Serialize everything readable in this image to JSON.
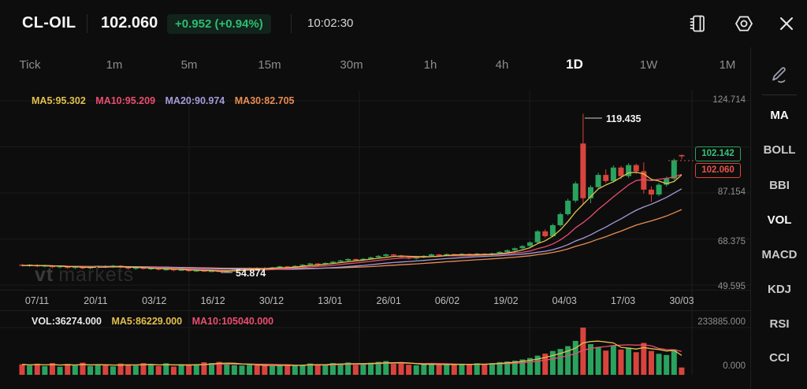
{
  "header": {
    "symbol": "CL-OIL",
    "price": "102.060",
    "change": "+0.952 (+0.94%)",
    "time": "10:02:30"
  },
  "header_icons": [
    "journal-icon",
    "settings-icon",
    "close-icon"
  ],
  "timeframes": {
    "items": [
      "Tick",
      "1m",
      "5m",
      "15m",
      "30m",
      "1h",
      "4h",
      "1D",
      "1W",
      "1M"
    ],
    "active": "1D"
  },
  "indicator_rail": {
    "items": [
      "MA",
      "BOLL",
      "BBI",
      "VOL",
      "MACD",
      "KDJ",
      "RSI",
      "CCI"
    ],
    "active": [
      "MA",
      "VOL"
    ]
  },
  "main_overlay": {
    "ma5": "MA5:95.302",
    "ma10": "MA10:95.209",
    "ma20": "MA20:90.974",
    "ma30": "MA30:82.705"
  },
  "volume_overlay": {
    "vol": "VOL:36274.000",
    "ma5": "MA5:86229.000",
    "ma10": "MA10:105040.000"
  },
  "y_axis": {
    "price": [
      "124.714",
      "87.154",
      "68.375",
      "49.595"
    ],
    "volume": [
      "233885.000",
      "0.000"
    ]
  },
  "x_axis": [
    "07/11",
    "20/11",
    "03/12",
    "16/12",
    "30/12",
    "13/01",
    "26/01",
    "06/02",
    "19/02",
    "04/03",
    "17/03",
    "30/03"
  ],
  "annotations": {
    "high": "119.435",
    "low": "54.874"
  },
  "price_tags": {
    "green": "102.142",
    "red": "102.060"
  },
  "watermark": {
    "bold": "vt",
    "rest": "markets"
  },
  "colors": {
    "background": "#0d0d0d",
    "up": "#2aa35f",
    "down": "#d8443d",
    "ma5": "#e3c04b",
    "ma10": "#ea4d6e",
    "ma20": "#a49bdc",
    "ma30": "#ea8c52",
    "pill_green": "#2dbd74",
    "grid": "#1b1b1b",
    "axis_text": "#8f8f8f"
  },
  "chart_data": {
    "type": "candlestick",
    "title": "CL-OIL 1D",
    "x_tick_labels": [
      "07/11",
      "20/11",
      "03/12",
      "16/12",
      "30/12",
      "13/01",
      "26/01",
      "06/02",
      "19/02",
      "04/03",
      "17/03",
      "30/03"
    ],
    "y_axis_ticks": [
      124.714,
      105.934,
      87.154,
      68.375,
      49.595
    ],
    "volume_axis_ticks": [
      233885.0,
      0.0
    ],
    "high_annotation": 119.435,
    "low_annotation": 54.874,
    "last_price": 102.06,
    "upper_tag_price": 102.142,
    "moving_averages_shown": {
      "MA5": 95.302,
      "MA10": 95.209,
      "MA20": 90.974,
      "MA30": 82.705
    },
    "volume_ma_shown": {
      "VOL": 36274.0,
      "MA5": 86229.0,
      "MA10": 105040.0
    },
    "candles_ohlcv": [
      [
        57.9,
        58.3,
        57.2,
        57.5,
        52000
      ],
      [
        57.5,
        58.1,
        57.0,
        57.8,
        46000
      ],
      [
        57.8,
        58.2,
        56.9,
        57.2,
        55000
      ],
      [
        57.2,
        57.9,
        56.8,
        57.6,
        43000
      ],
      [
        57.6,
        57.8,
        56.5,
        56.9,
        58000
      ],
      [
        56.9,
        57.6,
        56.4,
        57.3,
        40000
      ],
      [
        57.3,
        57.5,
        56.2,
        56.6,
        54000
      ],
      [
        56.6,
        57.4,
        56.1,
        57.1,
        46000
      ],
      [
        57.1,
        57.3,
        56.0,
        56.4,
        60000
      ],
      [
        56.4,
        57.2,
        56.0,
        56.9,
        44000
      ],
      [
        56.9,
        57.6,
        56.3,
        57.4,
        50000
      ],
      [
        57.4,
        57.7,
        56.5,
        56.8,
        47000
      ],
      [
        56.8,
        57.8,
        56.6,
        57.5,
        42000
      ],
      [
        57.5,
        57.7,
        56.4,
        56.8,
        56000
      ],
      [
        56.8,
        57.2,
        55.9,
        56.3,
        51000
      ],
      [
        56.3,
        57.0,
        55.8,
        56.7,
        45000
      ],
      [
        56.7,
        56.9,
        55.9,
        56.2,
        58000
      ],
      [
        56.2,
        56.8,
        55.7,
        56.5,
        49000
      ],
      [
        56.5,
        56.7,
        55.5,
        55.9,
        43000
      ],
      [
        55.9,
        56.4,
        55.4,
        56.1,
        57000
      ],
      [
        56.1,
        56.3,
        55.2,
        55.6,
        41000
      ],
      [
        55.6,
        56.2,
        55.3,
        55.9,
        53000
      ],
      [
        55.9,
        56.0,
        55.0,
        55.3,
        46000
      ],
      [
        55.3,
        55.8,
        54.95,
        55.6,
        52000
      ],
      [
        55.6,
        55.7,
        54.9,
        55.1,
        62000
      ],
      [
        55.1,
        55.6,
        54.88,
        55.4,
        58000
      ],
      [
        55.4,
        55.5,
        54.874,
        54.95,
        64000
      ],
      [
        54.95,
        55.7,
        54.9,
        55.5,
        55000
      ],
      [
        55.5,
        56.1,
        55.2,
        55.9,
        48000
      ],
      [
        55.9,
        56.5,
        55.6,
        56.3,
        46000
      ],
      [
        56.3,
        56.8,
        55.9,
        56.6,
        50000
      ],
      [
        56.6,
        56.9,
        56.0,
        56.4,
        47000
      ],
      [
        56.4,
        56.9,
        55.9,
        56.3,
        46000
      ],
      [
        56.3,
        57.0,
        56.0,
        56.8,
        43000
      ],
      [
        56.8,
        57.5,
        56.4,
        57.2,
        48000
      ],
      [
        57.2,
        57.4,
        56.3,
        56.8,
        52000
      ],
      [
        56.8,
        57.7,
        56.5,
        57.4,
        45000
      ],
      [
        57.4,
        58.2,
        57.1,
        57.9,
        50000
      ],
      [
        57.9,
        58.7,
        57.5,
        58.4,
        56000
      ],
      [
        58.4,
        58.6,
        57.6,
        58.0,
        47000
      ],
      [
        58.0,
        58.9,
        57.8,
        58.6,
        52000
      ],
      [
        58.6,
        59.4,
        58.2,
        59.1,
        58000
      ],
      [
        59.1,
        59.9,
        58.7,
        59.6,
        54000
      ],
      [
        59.6,
        60.5,
        59.2,
        60.2,
        61000
      ],
      [
        60.2,
        60.4,
        59.3,
        59.7,
        49000
      ],
      [
        59.7,
        60.6,
        59.4,
        60.3,
        55000
      ],
      [
        60.3,
        61.2,
        59.9,
        60.9,
        60000
      ],
      [
        60.9,
        61.8,
        60.5,
        61.5,
        64000
      ],
      [
        61.5,
        62.4,
        61.1,
        62.1,
        68000
      ],
      [
        62.1,
        62.3,
        61.2,
        61.6,
        54000
      ],
      [
        61.6,
        61.9,
        60.7,
        61.0,
        58000
      ],
      [
        61.0,
        61.3,
        60.1,
        60.4,
        50000
      ],
      [
        60.4,
        61.2,
        60.0,
        60.9,
        47000
      ],
      [
        60.9,
        61.8,
        60.5,
        61.5,
        52000
      ],
      [
        61.5,
        62.4,
        61.1,
        62.1,
        56000
      ],
      [
        62.1,
        62.3,
        61.2,
        61.6,
        48000
      ],
      [
        61.6,
        62.5,
        61.3,
        62.2,
        53000
      ],
      [
        62.2,
        62.4,
        61.3,
        61.7,
        49000
      ],
      [
        61.7,
        62.6,
        61.4,
        62.3,
        55000
      ],
      [
        62.3,
        62.5,
        61.4,
        61.8,
        51000
      ],
      [
        61.8,
        62.7,
        61.5,
        62.4,
        57000
      ],
      [
        62.4,
        62.6,
        61.5,
        61.9,
        52000
      ],
      [
        61.9,
        62.8,
        61.6,
        62.5,
        58000
      ],
      [
        62.5,
        63.4,
        62.1,
        63.1,
        63000
      ],
      [
        63.1,
        64.1,
        62.8,
        63.8,
        66000
      ],
      [
        63.8,
        64.9,
        63.4,
        64.6,
        70000
      ],
      [
        64.6,
        65.9,
        64.2,
        65.5,
        76000
      ],
      [
        65.5,
        67.4,
        65.1,
        67.0,
        83000
      ],
      [
        67.0,
        72.0,
        66.6,
        71.5,
        95000
      ],
      [
        71.5,
        72.3,
        68.9,
        69.5,
        105000
      ],
      [
        69.5,
        74.6,
        69.1,
        74.0,
        118000
      ],
      [
        74.0,
        79.2,
        73.4,
        78.5,
        128000
      ],
      [
        78.5,
        84.8,
        77.9,
        84.0,
        142000
      ],
      [
        84.0,
        91.8,
        83.2,
        91.0,
        168000
      ],
      [
        107.3,
        119.435,
        82.5,
        85.0,
        233885
      ],
      [
        85.0,
        90.3,
        83.0,
        89.5,
        152000
      ],
      [
        89.5,
        95.4,
        88.6,
        94.5,
        138000
      ],
      [
        94.5,
        96.8,
        91.2,
        92.0,
        120000
      ],
      [
        92.0,
        98.4,
        91.4,
        97.5,
        146000
      ],
      [
        97.5,
        98.2,
        92.8,
        94.0,
        125000
      ],
      [
        94.0,
        99.3,
        93.2,
        98.5,
        134000
      ],
      [
        98.5,
        99.1,
        94.9,
        96.0,
        112000
      ],
      [
        96.0,
        99.6,
        86.9,
        88.5,
        158000
      ],
      [
        88.5,
        89.8,
        83.5,
        86.5,
        118000
      ],
      [
        86.5,
        91.2,
        85.8,
        90.5,
        104000
      ],
      [
        90.5,
        93.8,
        89.7,
        93.0,
        98000
      ],
      [
        93.0,
        101.2,
        92.3,
        100.5,
        126000
      ],
      [
        102.6,
        102.8,
        100.9,
        102.06,
        36274
      ]
    ]
  }
}
